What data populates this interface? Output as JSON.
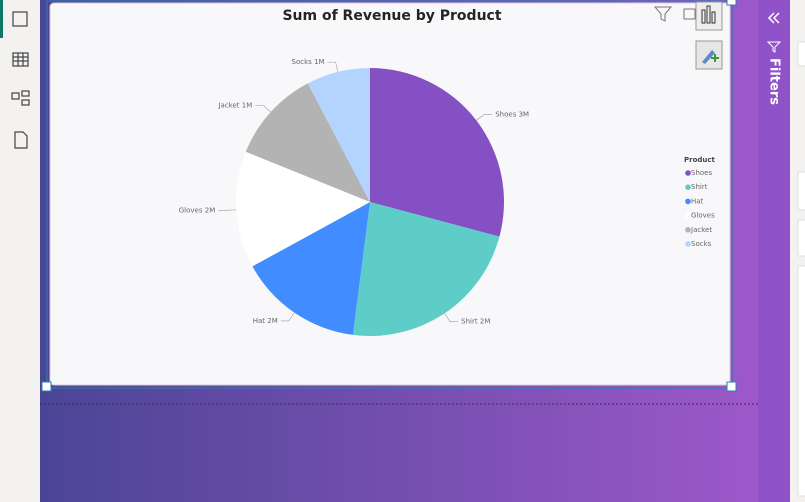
{
  "chart_data": {
    "type": "pie",
    "title": "Sum of Revenue by Product",
    "categories": [
      "Shoes",
      "Shirt",
      "Hat",
      "Gloves",
      "Jacket",
      "Socks"
    ],
    "values": [
      3150000,
      2470000,
      1620000,
      1520000,
      1210000,
      830000
    ],
    "value_labels": [
      "3M",
      "2M",
      "2M",
      "2M",
      "1M",
      "1M"
    ],
    "colors": [
      "#8450c4",
      "#5ecdc8",
      "#418cff",
      "#ffffff",
      "#b3b3b3",
      "#b3d4ff"
    ],
    "legend_title": "Product",
    "legend": "right"
  },
  "filters_pane": {
    "title": "Filters"
  }
}
